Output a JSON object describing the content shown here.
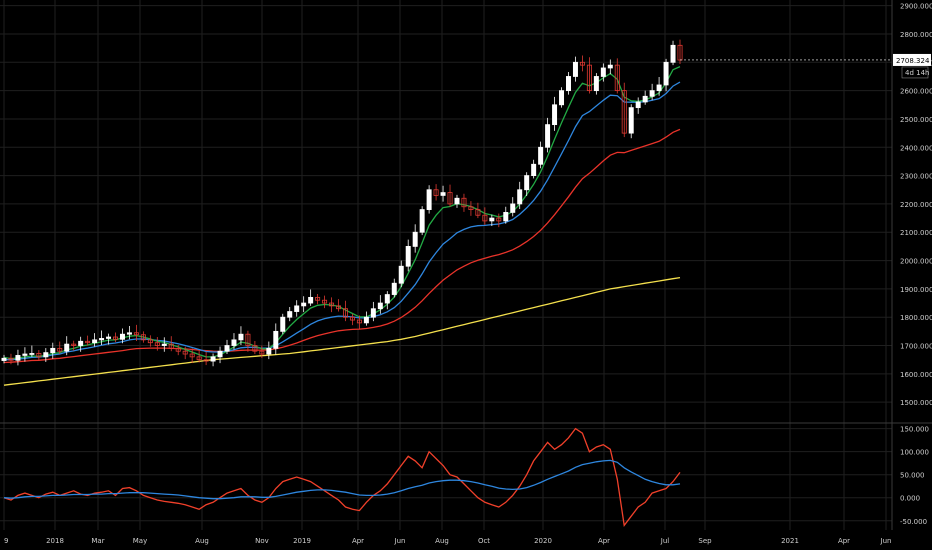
{
  "colors": {
    "background": "#000000",
    "grid": "#1f1f1f",
    "candle_up": "#ffffff",
    "candle_down": "#e03a32",
    "ema_green": "#22aa44",
    "ema_blue": "#2e86de",
    "ema_red": "#e8332a",
    "sma_yellow": "#f4e04d",
    "osc_red": "#f0402a",
    "osc_blue": "#2e86de",
    "axis_text": "#cfcfcf",
    "last_price_bg": "#ffffff",
    "last_price_text": "#000000"
  },
  "price_axis": {
    "ticks": [
      "2900.000",
      "2800.000",
      "2700.000",
      "2600.000",
      "2500.000",
      "2400.000",
      "2300.000",
      "2200.000",
      "2100.000",
      "2000.000",
      "1900.000",
      "1800.000",
      "1700.000",
      "1600.000",
      "1500.000"
    ],
    "last_price_label": "2708.324",
    "countdown_label": "4d 14h"
  },
  "osc_axis": {
    "ticks": [
      "150.000",
      "100.000",
      "50.000",
      "0.000",
      "-50.000"
    ]
  },
  "time_axis": {
    "labels": [
      "9",
      "2018",
      "Mar",
      "May",
      "Aug",
      "Nov",
      "2019",
      "Apr",
      "Jun",
      "Aug",
      "Oct",
      "2020",
      "Apr",
      "Jul",
      "Sep",
      "2021",
      "Apr",
      "Jun"
    ]
  },
  "chart_data": [
    {
      "type": "candlestick",
      "title": "",
      "ylim": [
        1430,
        2920
      ],
      "grid": true,
      "series": [
        {
          "name": "",
          "kind": "ohlc"
        },
        {
          "name": "",
          "kind": "ema-fast"
        },
        {
          "name": "",
          "kind": "ema-mid"
        },
        {
          "name": "",
          "kind": "ema-slow"
        },
        {
          "name": "",
          "kind": "sma-long"
        }
      ],
      "close": [
        1655,
        1648,
        1665,
        1670,
        1672,
        1660,
        1675,
        1690,
        1680,
        1705,
        1700,
        1715,
        1710,
        1720,
        1725,
        1730,
        1722,
        1740,
        1745,
        1738,
        1720,
        1710,
        1700,
        1705,
        1690,
        1680,
        1670,
        1660,
        1650,
        1645,
        1660,
        1680,
        1700,
        1720,
        1740,
        1700,
        1680,
        1670,
        1690,
        1750,
        1800,
        1820,
        1840,
        1850,
        1870,
        1860,
        1850,
        1840,
        1830,
        1800,
        1790,
        1780,
        1800,
        1830,
        1850,
        1880,
        1920,
        1980,
        2050,
        2100,
        2180,
        2250,
        2230,
        2240,
        2200,
        2220,
        2190,
        2180,
        2160,
        2140,
        2150,
        2140,
        2170,
        2200,
        2250,
        2300,
        2340,
        2400,
        2480,
        2550,
        2600,
        2650,
        2700,
        2690,
        2600,
        2650,
        2680,
        2690,
        2600,
        2450,
        2540,
        2560,
        2580,
        2600,
        2620,
        2700,
        2760,
        2708
      ],
      "ema_fast": [
        1658,
        1654,
        1656,
        1660,
        1663,
        1662,
        1665,
        1672,
        1675,
        1685,
        1690,
        1698,
        1702,
        1708,
        1713,
        1719,
        1720,
        1727,
        1733,
        1735,
        1730,
        1723,
        1715,
        1711,
        1703,
        1695,
        1686,
        1677,
        1668,
        1660,
        1660,
        1667,
        1680,
        1695,
        1712,
        1708,
        1698,
        1688,
        1689,
        1710,
        1740,
        1768,
        1792,
        1812,
        1832,
        1842,
        1845,
        1843,
        1838,
        1825,
        1813,
        1801,
        1801,
        1812,
        1826,
        1846,
        1871,
        1908,
        1955,
        2003,
        2062,
        2125,
        2160,
        2187,
        2191,
        2201,
        2197,
        2191,
        2180,
        2166,
        2161,
        2154,
        2160,
        2173,
        2199,
        2233,
        2269,
        2313,
        2368,
        2429,
        2486,
        2541,
        2594,
        2626,
        2617,
        2628,
        2645,
        2660,
        2640,
        2577,
        2564,
        2562,
        2567,
        2578,
        2592,
        2628,
        2674,
        2685
      ],
      "ema_mid": [
        1650,
        1650,
        1652,
        1655,
        1658,
        1659,
        1662,
        1667,
        1670,
        1677,
        1681,
        1687,
        1691,
        1696,
        1701,
        1706,
        1709,
        1714,
        1720,
        1723,
        1723,
        1721,
        1718,
        1716,
        1711,
        1706,
        1700,
        1693,
        1686,
        1679,
        1677,
        1677,
        1680,
        1685,
        1692,
        1694,
        1693,
        1691,
        1691,
        1699,
        1713,
        1728,
        1744,
        1759,
        1775,
        1787,
        1795,
        1800,
        1804,
        1803,
        1801,
        1798,
        1798,
        1802,
        1809,
        1819,
        1834,
        1856,
        1885,
        1915,
        1953,
        1995,
        2028,
        2058,
        2077,
        2098,
        2110,
        2119,
        2123,
        2124,
        2127,
        2129,
        2135,
        2145,
        2163,
        2186,
        2212,
        2245,
        2285,
        2331,
        2377,
        2424,
        2473,
        2512,
        2526,
        2546,
        2566,
        2584,
        2582,
        2560,
        2559,
        2559,
        2561,
        2566,
        2572,
        2590,
        2616,
        2630
      ],
      "ema_slow": [
        1640,
        1641,
        1643,
        1645,
        1647,
        1648,
        1650,
        1653,
        1655,
        1658,
        1661,
        1664,
        1667,
        1670,
        1673,
        1676,
        1679,
        1682,
        1686,
        1689,
        1690,
        1691,
        1691,
        1691,
        1690,
        1689,
        1688,
        1686,
        1684,
        1682,
        1680,
        1679,
        1680,
        1681,
        1683,
        1684,
        1684,
        1684,
        1685,
        1688,
        1694,
        1701,
        1709,
        1718,
        1727,
        1735,
        1741,
        1747,
        1752,
        1755,
        1757,
        1758,
        1760,
        1764,
        1769,
        1776,
        1786,
        1799,
        1816,
        1835,
        1858,
        1884,
        1908,
        1931,
        1949,
        1967,
        1980,
        1992,
        2001,
        2008,
        2015,
        2021,
        2029,
        2038,
        2051,
        2067,
        2085,
        2107,
        2133,
        2162,
        2193,
        2225,
        2259,
        2289,
        2308,
        2330,
        2352,
        2372,
        2382,
        2381,
        2389,
        2397,
        2405,
        2413,
        2421,
        2436,
        2453,
        2463
      ],
      "sma_long": [
        1560,
        1563,
        1566,
        1569,
        1572,
        1575,
        1578,
        1581,
        1584,
        1587,
        1590,
        1593,
        1596,
        1599,
        1602,
        1605,
        1608,
        1611,
        1614,
        1617,
        1620,
        1623,
        1626,
        1629,
        1632,
        1635,
        1638,
        1641,
        1644,
        1647,
        1650,
        1652,
        1654,
        1656,
        1658,
        1660,
        1662,
        1664,
        1666,
        1668,
        1670,
        1672,
        1675,
        1678,
        1681,
        1684,
        1687,
        1690,
        1693,
        1696,
        1699,
        1702,
        1705,
        1708,
        1711,
        1714,
        1718,
        1722,
        1727,
        1732,
        1738,
        1744,
        1750,
        1756,
        1762,
        1768,
        1774,
        1780,
        1786,
        1792,
        1798,
        1804,
        1810,
        1816,
        1822,
        1828,
        1834,
        1840,
        1846,
        1852,
        1858,
        1864,
        1870,
        1876,
        1882,
        1888,
        1894,
        1900,
        1904,
        1908,
        1912,
        1916,
        1920,
        1924,
        1928,
        1932,
        1936,
        1940
      ]
    },
    {
      "type": "line",
      "title": "",
      "ylim": [
        -70,
        160
      ],
      "grid": true,
      "series": [
        {
          "name": "",
          "values": [
            0,
            -5,
            5,
            10,
            5,
            0,
            8,
            12,
            5,
            10,
            15,
            8,
            5,
            10,
            12,
            15,
            5,
            20,
            22,
            15,
            5,
            0,
            -5,
            -8,
            -10,
            -12,
            -15,
            -20,
            -25,
            -15,
            -10,
            0,
            10,
            15,
            20,
            5,
            -5,
            -10,
            0,
            20,
            35,
            40,
            45,
            40,
            35,
            25,
            15,
            5,
            -5,
            -20,
            -25,
            -28,
            -10,
            5,
            15,
            30,
            50,
            70,
            90,
            80,
            65,
            100,
            85,
            70,
            50,
            45,
            30,
            15,
            0,
            -10,
            -15,
            -20,
            -10,
            5,
            25,
            50,
            80,
            100,
            120,
            105,
            115,
            130,
            150,
            140,
            100,
            110,
            115,
            105,
            40,
            -60,
            -40,
            -20,
            -10,
            10,
            15,
            20,
            35,
            55
          ]
        },
        {
          "name": "",
          "values": [
            0,
            -1,
            0,
            2,
            3,
            3,
            4,
            5,
            5,
            6,
            7,
            7,
            7,
            8,
            8,
            9,
            9,
            10,
            11,
            11,
            11,
            10,
            9,
            8,
            7,
            6,
            4,
            2,
            0,
            -1,
            -2,
            -2,
            -1,
            0,
            2,
            2,
            2,
            1,
            1,
            3,
            6,
            9,
            12,
            14,
            16,
            17,
            17,
            16,
            14,
            12,
            9,
            6,
            5,
            5,
            6,
            8,
            11,
            15,
            20,
            24,
            27,
            32,
            35,
            37,
            38,
            38,
            37,
            35,
            32,
            28,
            25,
            21,
            19,
            18,
            19,
            22,
            27,
            33,
            40,
            46,
            52,
            58,
            66,
            72,
            75,
            78,
            80,
            81,
            77,
            65,
            56,
            48,
            40,
            35,
            31,
            28,
            28,
            30
          ]
        }
      ]
    }
  ]
}
